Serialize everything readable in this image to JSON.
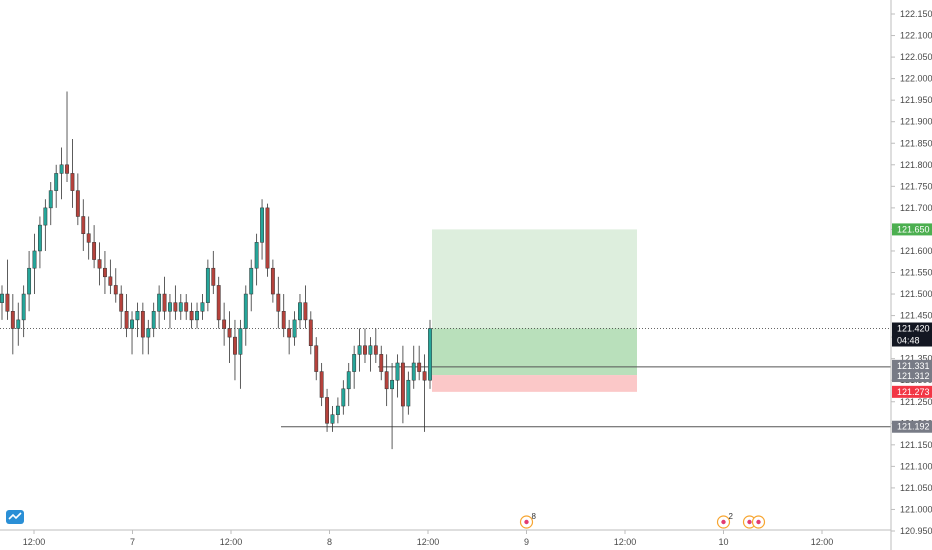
{
  "colors": {
    "up": "#26a69a",
    "down": "#b5423c",
    "target_zone": "#ddeedd",
    "profit_zone": "#b9e0bb",
    "stop_zone": "#fbc8c8",
    "axis_line": "#bdbdbd",
    "tag_green": "#4caf50",
    "tag_red": "#f23645",
    "tag_gray": "#787b86",
    "tag_black": "#131722",
    "event_orange": "#f7a530",
    "event_red": "#e23b70",
    "logo_blue": "#2a8fd6"
  },
  "logo_icon": "tradingview-cloud-icon",
  "chart_data": {
    "type": "candlestick",
    "x_tick_labels": [
      "12:00",
      "7",
      "12:00",
      "8",
      "12:00",
      "9",
      "12:00",
      "10",
      "12:00"
    ],
    "y_tick_labels": [
      "122.150",
      "122.100",
      "122.050",
      "122.000",
      "121.950",
      "121.900",
      "121.850",
      "121.800",
      "121.750",
      "121.700",
      "121.650",
      "121.600",
      "121.550",
      "121.500",
      "121.450",
      "121.400",
      "121.350",
      "121.300",
      "121.250",
      "121.200",
      "121.150",
      "121.100",
      "121.050",
      "121.000",
      "120.950"
    ],
    "ylim": [
      120.945,
      122.17
    ],
    "price_tags": [
      {
        "label": "121.650",
        "value": 121.65,
        "style": "green"
      },
      {
        "label": "121.420",
        "value": 121.42,
        "style": "black"
      },
      {
        "label": "04:48",
        "value": 121.4,
        "style": "countdown"
      },
      {
        "label": "121.331",
        "value": 121.331,
        "style": "gray"
      },
      {
        "label": "121.312",
        "value": 121.312,
        "style": "gray"
      },
      {
        "label": "121.273",
        "value": 121.273,
        "style": "red"
      },
      {
        "label": "121.192",
        "value": 121.192,
        "style": "gray"
      }
    ],
    "position": {
      "direction": "long",
      "entry": 121.312,
      "target": 121.65,
      "stop": 121.273,
      "current": 121.42
    },
    "horizontal_lines": [
      121.331,
      121.192
    ],
    "events": [
      {
        "count": "8",
        "slot": 5
      },
      {
        "count": "2",
        "slot": 7
      }
    ],
    "candles": [
      [
        121.48,
        121.52,
        121.44,
        121.5
      ],
      [
        121.5,
        121.58,
        121.44,
        121.46
      ],
      [
        121.46,
        121.5,
        121.36,
        121.42
      ],
      [
        121.42,
        121.48,
        121.38,
        121.44
      ],
      [
        121.44,
        121.52,
        121.4,
        121.5
      ],
      [
        121.5,
        121.6,
        121.46,
        121.56
      ],
      [
        121.56,
        121.64,
        121.5,
        121.6
      ],
      [
        121.6,
        121.68,
        121.56,
        121.66
      ],
      [
        121.66,
        121.72,
        121.6,
        121.7
      ],
      [
        121.7,
        121.76,
        121.66,
        121.74
      ],
      [
        121.74,
        121.8,
        121.7,
        121.78
      ],
      [
        121.78,
        121.84,
        121.72,
        121.8
      ],
      [
        121.8,
        121.97,
        121.76,
        121.78
      ],
      [
        121.78,
        121.86,
        121.7,
        121.74
      ],
      [
        121.74,
        121.78,
        121.66,
        121.68
      ],
      [
        121.68,
        121.72,
        121.6,
        121.64
      ],
      [
        121.64,
        121.68,
        121.58,
        121.62
      ],
      [
        121.62,
        121.66,
        121.56,
        121.58
      ],
      [
        121.58,
        121.62,
        121.52,
        121.56
      ],
      [
        121.56,
        121.6,
        121.5,
        121.54
      ],
      [
        121.54,
        121.58,
        121.5,
        121.52
      ],
      [
        121.52,
        121.56,
        121.48,
        121.5
      ],
      [
        121.5,
        121.52,
        121.42,
        121.46
      ],
      [
        121.46,
        121.5,
        121.4,
        121.42
      ],
      [
        121.42,
        121.46,
        121.36,
        121.44
      ],
      [
        121.44,
        121.48,
        121.4,
        121.46
      ],
      [
        121.46,
        121.48,
        121.36,
        121.4
      ],
      [
        121.4,
        121.44,
        121.36,
        121.42
      ],
      [
        121.42,
        121.48,
        121.4,
        121.46
      ],
      [
        121.46,
        121.52,
        121.42,
        121.5
      ],
      [
        121.5,
        121.54,
        121.44,
        121.46
      ],
      [
        121.46,
        121.5,
        121.42,
        121.48
      ],
      [
        121.48,
        121.52,
        121.44,
        121.46
      ],
      [
        121.46,
        121.5,
        121.44,
        121.48
      ],
      [
        121.48,
        121.5,
        121.44,
        121.46
      ],
      [
        121.46,
        121.48,
        121.42,
        121.44
      ],
      [
        121.44,
        121.48,
        121.42,
        121.46
      ],
      [
        121.46,
        121.5,
        121.44,
        121.48
      ],
      [
        121.48,
        121.58,
        121.46,
        121.56
      ],
      [
        121.56,
        121.6,
        121.5,
        121.52
      ],
      [
        121.52,
        121.54,
        121.42,
        121.44
      ],
      [
        121.44,
        121.48,
        121.38,
        121.42
      ],
      [
        121.42,
        121.46,
        121.34,
        121.4
      ],
      [
        121.4,
        121.44,
        121.3,
        121.36
      ],
      [
        121.36,
        121.44,
        121.28,
        121.42
      ],
      [
        121.42,
        121.52,
        121.38,
        121.5
      ],
      [
        121.5,
        121.58,
        121.46,
        121.56
      ],
      [
        121.56,
        121.64,
        121.52,
        121.62
      ],
      [
        121.62,
        121.72,
        121.58,
        121.7
      ],
      [
        121.7,
        121.71,
        121.54,
        121.56
      ],
      [
        121.56,
        121.58,
        121.48,
        121.5
      ],
      [
        121.5,
        121.54,
        121.42,
        121.46
      ],
      [
        121.46,
        121.5,
        121.4,
        121.42
      ],
      [
        121.42,
        121.44,
        121.36,
        121.4
      ],
      [
        121.4,
        121.46,
        121.38,
        121.44
      ],
      [
        121.44,
        121.5,
        121.42,
        121.48
      ],
      [
        121.48,
        121.52,
        121.42,
        121.44
      ],
      [
        121.44,
        121.46,
        121.36,
        121.38
      ],
      [
        121.38,
        121.4,
        121.3,
        121.32
      ],
      [
        121.32,
        121.34,
        121.24,
        121.26
      ],
      [
        121.26,
        121.28,
        121.18,
        121.2
      ],
      [
        121.2,
        121.24,
        121.18,
        121.22
      ],
      [
        121.22,
        121.26,
        121.2,
        121.24
      ],
      [
        121.24,
        121.3,
        121.22,
        121.28
      ],
      [
        121.28,
        121.34,
        121.24,
        121.32
      ],
      [
        121.32,
        121.38,
        121.28,
        121.36
      ],
      [
        121.36,
        121.42,
        121.32,
        121.38
      ],
      [
        121.38,
        121.42,
        121.34,
        121.36
      ],
      [
        121.36,
        121.4,
        121.32,
        121.38
      ],
      [
        121.38,
        121.42,
        121.34,
        121.36
      ],
      [
        121.36,
        121.38,
        121.3,
        121.32
      ],
      [
        121.32,
        121.36,
        121.24,
        121.28
      ],
      [
        121.28,
        121.34,
        121.14,
        121.3
      ],
      [
        121.3,
        121.36,
        121.26,
        121.34
      ],
      [
        121.34,
        121.38,
        121.2,
        121.24
      ],
      [
        121.24,
        121.32,
        121.22,
        121.3
      ],
      [
        121.3,
        121.38,
        121.28,
        121.34
      ],
      [
        121.34,
        121.38,
        121.3,
        121.32
      ],
      [
        121.32,
        121.36,
        121.18,
        121.3
      ],
      [
        121.3,
        121.44,
        121.28,
        121.42
      ]
    ]
  }
}
